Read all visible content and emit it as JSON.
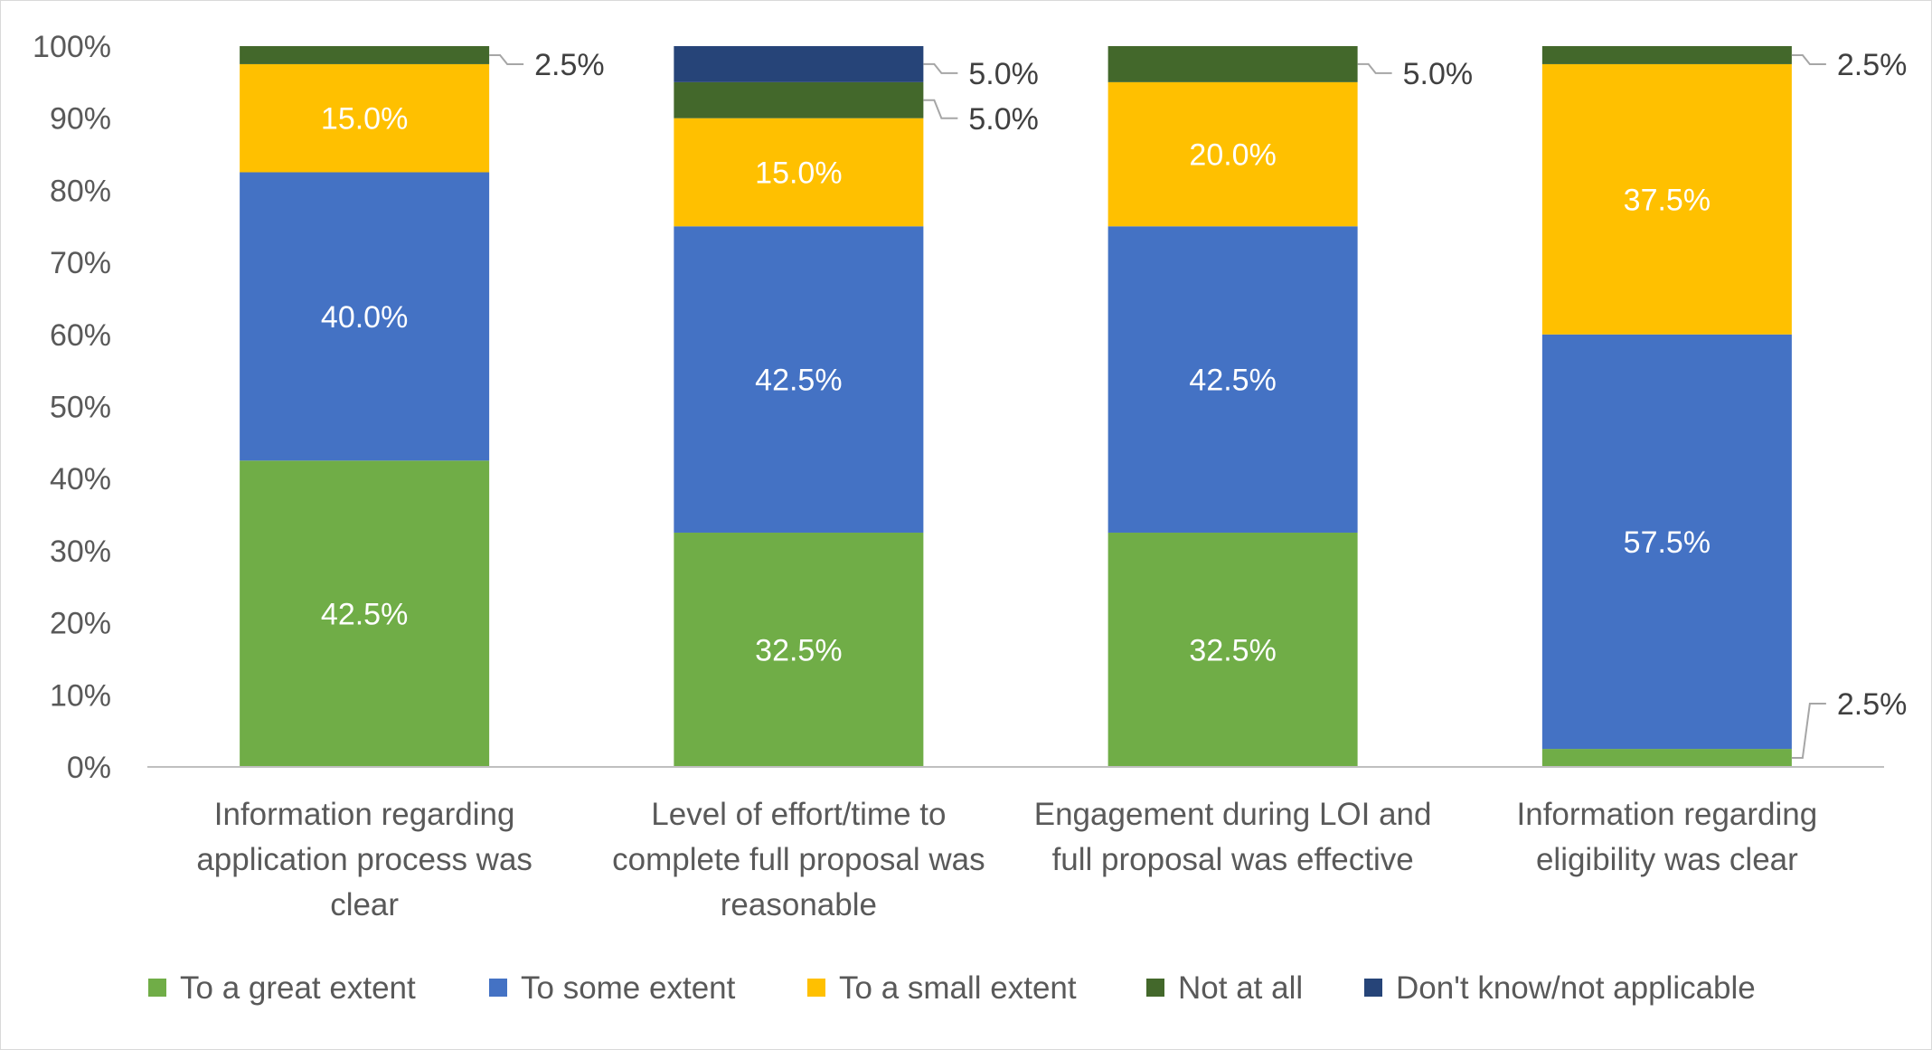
{
  "chart_data": {
    "type": "bar",
    "stacked": true,
    "title": "",
    "xlabel": "",
    "ylabel": "",
    "ylim": [
      0,
      100
    ],
    "y_ticks": [
      "0%",
      "10%",
      "20%",
      "30%",
      "40%",
      "50%",
      "60%",
      "70%",
      "80%",
      "90%",
      "100%"
    ],
    "grid": false,
    "legend_position": "bottom",
    "categories": [
      [
        "Information regarding",
        "application process was",
        "clear"
      ],
      [
        "Level of effort/time to",
        "complete full proposal was",
        "reasonable"
      ],
      [
        "Engagement during  LOI and",
        "full proposal  was effective"
      ],
      [
        "Information regarding",
        "eligibility was clear"
      ]
    ],
    "series": [
      {
        "name": "To a great extent",
        "color": "#70ad47",
        "values": [
          42.5,
          32.5,
          32.5,
          2.5
        ],
        "labels": [
          "42.5%",
          "32.5%",
          "32.5%",
          "2.5%"
        ]
      },
      {
        "name": "To some extent",
        "color": "#4472c4",
        "values": [
          40.0,
          42.5,
          42.5,
          57.5
        ],
        "labels": [
          "40.0%",
          "42.5%",
          "42.5%",
          "57.5%"
        ]
      },
      {
        "name": "To a small extent",
        "color": "#ffc000",
        "values": [
          15.0,
          15.0,
          20.0,
          37.5
        ],
        "labels": [
          "15.0%",
          "15.0%",
          "20.0%",
          "37.5%"
        ]
      },
      {
        "name": "Not at all",
        "color": "#43682b",
        "values": [
          2.5,
          5.0,
          5.0,
          2.5
        ],
        "labels": [
          "2.5%",
          "5.0%",
          "5.0%",
          "2.5%"
        ]
      },
      {
        "name": "Don't know/not applicable",
        "color": "#264478",
        "values": [
          0,
          5.0,
          0,
          0
        ],
        "labels": [
          "",
          "5.0%",
          "",
          ""
        ]
      }
    ]
  }
}
